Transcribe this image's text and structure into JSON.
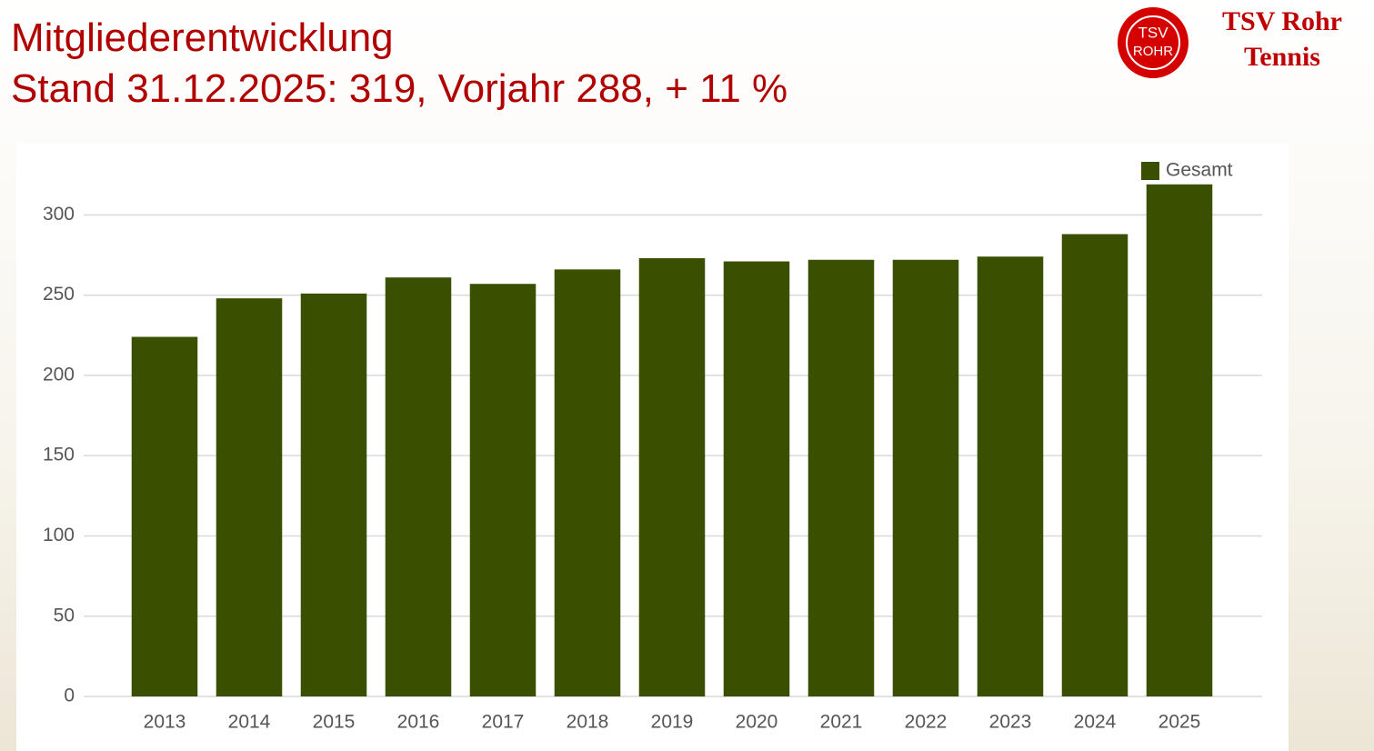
{
  "header": {
    "line1": "Mitgliederentwicklung",
    "line2": "Stand 31.12.2025: 319, Vorjahr 288, + 11 %"
  },
  "logo": {
    "badge_top": "TSV",
    "badge_bottom": "ROHR",
    "name": "TSV Rohr",
    "subtitle": "Tennis"
  },
  "chart_data": {
    "type": "bar",
    "categories": [
      "2013",
      "2014",
      "2015",
      "2016",
      "2017",
      "2018",
      "2019",
      "2020",
      "2021",
      "2022",
      "2023",
      "2024",
      "2025"
    ],
    "series": [
      {
        "name": "Gesamt",
        "color": "#3a5000",
        "values": [
          224,
          248,
          251,
          261,
          257,
          266,
          273,
          271,
          272,
          272,
          274,
          288,
          319
        ]
      }
    ],
    "ylim": [
      0,
      320
    ],
    "yticks": [
      0,
      50,
      100,
      150,
      200,
      250,
      300
    ],
    "grid": true,
    "legend": "top-right"
  }
}
